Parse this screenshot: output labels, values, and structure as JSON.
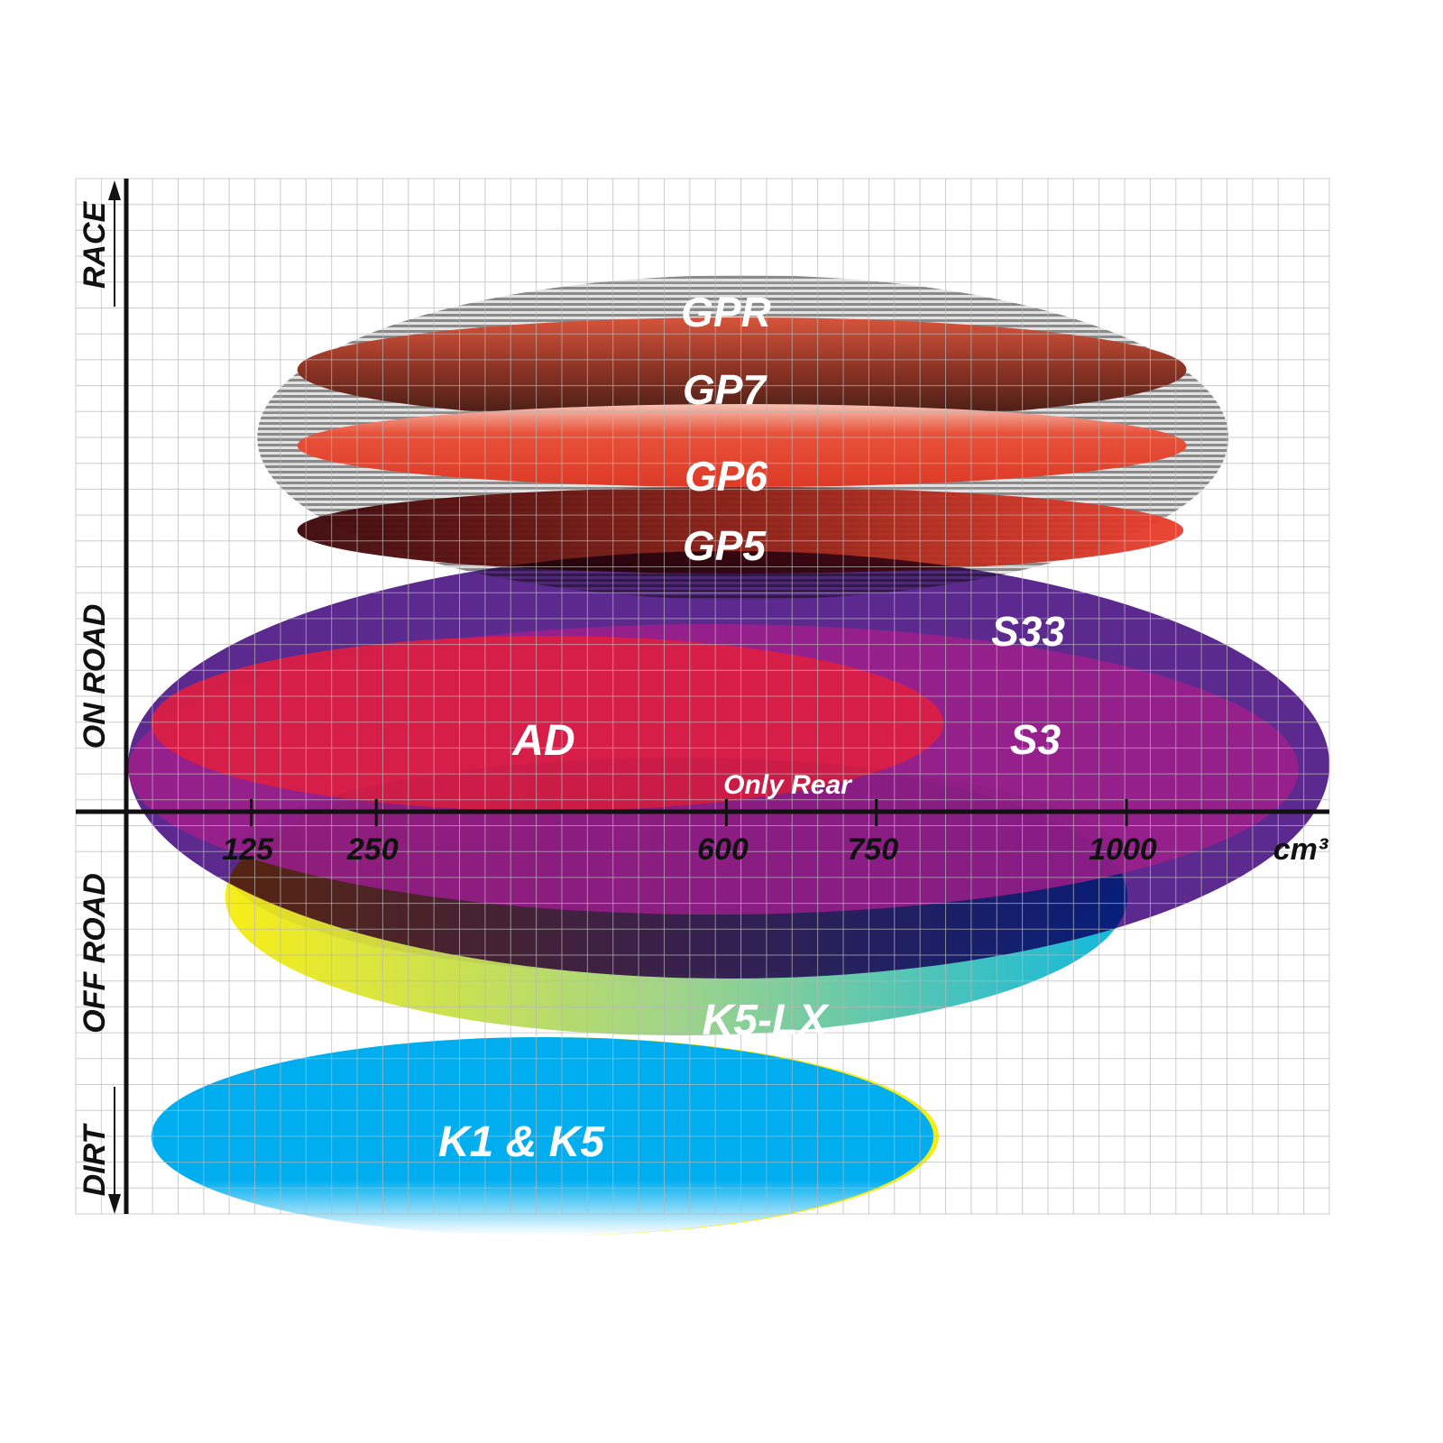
{
  "chart_data": {
    "type": "range-ellipse",
    "title": "",
    "xlabel": "cm³",
    "x_unit": "cm³",
    "x_ticks": [
      125,
      250,
      600,
      750,
      1000
    ],
    "xlim": [
      0,
      1250
    ],
    "y_categories": [
      "RACE",
      "ON ROAD",
      "OFF ROAD",
      "DIRT"
    ],
    "grid": true,
    "products": [
      {
        "name": "GPR",
        "cc_range": [
          131,
          1102
        ],
        "category": "RACE",
        "colors": [
          "#8a8a8a",
          "#e0e0e0"
        ]
      },
      {
        "name": "GP7",
        "cc_range": [
          171,
          1060
        ],
        "category": "RACE",
        "colors": [
          "#cf4e34",
          "#3e1a14"
        ]
      },
      {
        "name": "GP6",
        "cc_range": [
          171,
          1060
        ],
        "category": "RACE",
        "colors": [
          "#f3b4a4",
          "#dd3a27"
        ]
      },
      {
        "name": "GP5",
        "cc_range": [
          171,
          1057
        ],
        "category": "RACE",
        "colors": [
          "#3a0508",
          "#ec3d2c"
        ]
      },
      {
        "name": "S33",
        "cc_range": [
          2,
          1203
        ],
        "category": "ON ROAD",
        "colors": [
          "#5c2a8e"
        ]
      },
      {
        "name": "S3",
        "cc_range": [
          2,
          1172
        ],
        "category": "ON ROAD",
        "colors": [
          "#9b1f8c"
        ]
      },
      {
        "name": "AD",
        "cc_range": [
          25,
          817
        ],
        "category": "ON ROAD",
        "colors": [
          "#d91f44"
        ]
      },
      {
        "name": "K5-LX",
        "cc_range": [
          99,
          1001
        ],
        "category": "OFF ROAD",
        "colors": [
          "#f8ee18",
          "#10b8dc"
        ]
      },
      {
        "name": "K1 & K5",
        "cc_range": [
          25,
          807
        ],
        "category": "DIRT",
        "colors": [
          "#00aeef",
          "#f5ee10"
        ]
      }
    ],
    "annotations": [
      "Only Rear"
    ]
  }
}
